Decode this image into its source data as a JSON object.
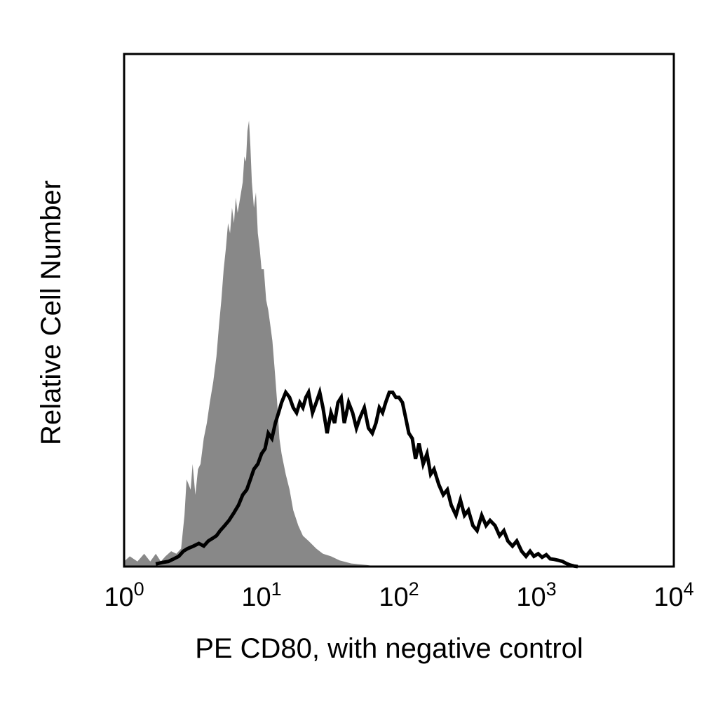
{
  "chart_data": {
    "type": "area",
    "title": "",
    "xlabel": "PE CD80, with negative control",
    "ylabel": "Relative Cell Number",
    "x_scale": "log",
    "xlim": [
      1,
      10000
    ],
    "ylim": [
      0,
      100
    ],
    "grid": false,
    "legend": "none",
    "x_tick_labels": [
      {
        "value": 1,
        "base": "10",
        "exp": "0"
      },
      {
        "value": 10,
        "base": "10",
        "exp": "1"
      },
      {
        "value": 100,
        "base": "10",
        "exp": "2"
      },
      {
        "value": 1000,
        "base": "10",
        "exp": "3"
      },
      {
        "value": 10000,
        "base": "10",
        "exp": "4"
      }
    ],
    "series": [
      {
        "style": "filled",
        "color": "#888888",
        "points": [
          [
            1.0,
            1.0
          ],
          [
            1.1,
            2.0
          ],
          [
            1.25,
            1.0
          ],
          [
            1.4,
            2.5
          ],
          [
            1.55,
            1.0
          ],
          [
            1.7,
            2.5
          ],
          [
            1.85,
            1.0
          ],
          [
            2.0,
            2.0
          ],
          [
            2.2,
            3.0
          ],
          [
            2.4,
            2.5
          ],
          [
            2.6,
            3.5
          ],
          [
            2.75,
            10
          ],
          [
            2.85,
            17
          ],
          [
            2.95,
            16
          ],
          [
            3.05,
            15
          ],
          [
            3.15,
            20
          ],
          [
            3.3,
            14
          ],
          [
            3.45,
            19
          ],
          [
            3.6,
            20
          ],
          [
            3.8,
            25
          ],
          [
            4.0,
            28
          ],
          [
            4.2,
            32
          ],
          [
            4.45,
            36
          ],
          [
            4.7,
            41
          ],
          [
            4.9,
            47
          ],
          [
            5.1,
            52
          ],
          [
            5.3,
            58
          ],
          [
            5.5,
            62
          ],
          [
            5.7,
            67
          ],
          [
            5.9,
            65
          ],
          [
            6.1,
            70
          ],
          [
            6.3,
            67
          ],
          [
            6.5,
            72
          ],
          [
            6.7,
            69
          ],
          [
            6.9,
            71
          ],
          [
            7.1,
            73
          ],
          [
            7.3,
            75
          ],
          [
            7.5,
            80
          ],
          [
            7.7,
            79
          ],
          [
            7.9,
            85
          ],
          [
            8.1,
            87
          ],
          [
            8.3,
            82
          ],
          [
            8.5,
            75
          ],
          [
            8.8,
            70
          ],
          [
            9.1,
            73
          ],
          [
            9.4,
            65
          ],
          [
            9.7,
            62
          ],
          [
            10.0,
            58
          ],
          [
            10.4,
            58
          ],
          [
            10.8,
            52
          ],
          [
            11.2,
            50
          ],
          [
            11.6,
            47
          ],
          [
            12.0,
            44
          ],
          [
            12.5,
            38
          ],
          [
            13.0,
            32
          ],
          [
            13.5,
            25
          ],
          [
            14.0,
            22
          ],
          [
            15.0,
            18
          ],
          [
            16.0,
            15
          ],
          [
            17.0,
            11
          ],
          [
            18.5,
            8
          ],
          [
            20.0,
            6
          ],
          [
            22.0,
            5
          ],
          [
            25.0,
            3.5
          ],
          [
            28.0,
            2.5
          ],
          [
            32.0,
            2.0
          ],
          [
            37.0,
            1.2
          ],
          [
            45.0,
            0.6
          ],
          [
            58.0,
            0.3
          ],
          [
            70.0,
            0
          ]
        ]
      },
      {
        "style": "line",
        "color": "#000000",
        "points": [
          [
            1.7,
            0.5
          ],
          [
            1.9,
            0.8
          ],
          [
            2.1,
            1.0
          ],
          [
            2.3,
            1.5
          ],
          [
            2.5,
            2.0
          ],
          [
            2.7,
            3.0
          ],
          [
            2.9,
            3.5
          ],
          [
            3.2,
            4.0
          ],
          [
            3.5,
            4.5
          ],
          [
            3.8,
            4.0
          ],
          [
            4.1,
            5.0
          ],
          [
            4.4,
            5.5
          ],
          [
            4.7,
            6.0
          ],
          [
            5.0,
            7.0
          ],
          [
            5.4,
            8.0
          ],
          [
            5.8,
            9.0
          ],
          [
            6.3,
            10.5
          ],
          [
            6.8,
            12.0
          ],
          [
            7.3,
            14.0
          ],
          [
            7.8,
            15.0
          ],
          [
            8.3,
            17.0
          ],
          [
            8.8,
            19.0
          ],
          [
            9.4,
            20.0
          ],
          [
            10.0,
            22.0
          ],
          [
            10.6,
            23.0
          ],
          [
            11.2,
            26.0
          ],
          [
            11.9,
            25.0
          ],
          [
            12.6,
            28.0
          ],
          [
            13.3,
            30.0
          ],
          [
            14.0,
            32.0
          ],
          [
            15.0,
            34.0
          ],
          [
            16.0,
            33.0
          ],
          [
            17.0,
            31.0
          ],
          [
            18.0,
            30.0
          ],
          [
            19.0,
            32.0
          ],
          [
            20.0,
            31.0
          ],
          [
            21.0,
            33.0
          ],
          [
            22.0,
            34.0
          ],
          [
            23.5,
            30.0
          ],
          [
            25.0,
            32.0
          ],
          [
            26.5,
            34.0
          ],
          [
            28.0,
            31.0
          ],
          [
            30.0,
            26.0
          ],
          [
            32.0,
            30.0
          ],
          [
            34.0,
            28.0
          ],
          [
            36.0,
            32.0
          ],
          [
            38.0,
            33.0
          ],
          [
            40.0,
            28.0
          ],
          [
            43.0,
            32.0
          ],
          [
            46.0,
            30.0
          ],
          [
            49.0,
            27.0
          ],
          [
            52.0,
            29.0
          ],
          [
            56.0,
            31.0
          ],
          [
            60.0,
            27.0
          ],
          [
            64.0,
            26.0
          ],
          [
            68.0,
            28.0
          ],
          [
            72.0,
            31.0
          ],
          [
            76.0,
            30.0
          ],
          [
            80.0,
            32.0
          ],
          [
            85.0,
            34.0
          ],
          [
            90.0,
            34.0
          ],
          [
            95.0,
            33.0
          ],
          [
            100,
            33.0
          ],
          [
            106,
            32.0
          ],
          [
            112,
            29.0
          ],
          [
            118,
            26.0
          ],
          [
            125,
            25.0
          ],
          [
            132,
            21.0
          ],
          [
            140,
            24.0
          ],
          [
            150,
            20.0
          ],
          [
            160,
            22.0
          ],
          [
            170,
            18.0
          ],
          [
            180,
            19.0
          ],
          [
            195,
            16.0
          ],
          [
            210,
            14.0
          ],
          [
            225,
            15.0
          ],
          [
            240,
            12.0
          ],
          [
            260,
            10.0
          ],
          [
            280,
            13.0
          ],
          [
            300,
            10.0
          ],
          [
            320,
            11.0
          ],
          [
            345,
            8.0
          ],
          [
            370,
            7.0
          ],
          [
            400,
            10.0
          ],
          [
            430,
            8.0
          ],
          [
            460,
            9.0
          ],
          [
            500,
            8.0
          ],
          [
            540,
            6.0
          ],
          [
            580,
            7.0
          ],
          [
            620,
            5.0
          ],
          [
            670,
            4.0
          ],
          [
            720,
            5.0
          ],
          [
            780,
            3.0
          ],
          [
            840,
            2.0
          ],
          [
            900,
            3.0
          ],
          [
            960,
            2.0
          ],
          [
            1030,
            2.5
          ],
          [
            1100,
            1.8
          ],
          [
            1180,
            2.3
          ],
          [
            1260,
            1.5
          ],
          [
            1350,
            1.4
          ],
          [
            1450,
            1.2
          ],
          [
            1550,
            1.0
          ],
          [
            1650,
            0.6
          ],
          [
            1760,
            0.3
          ],
          [
            1880,
            0.1
          ],
          [
            2000,
            0
          ]
        ]
      }
    ]
  }
}
